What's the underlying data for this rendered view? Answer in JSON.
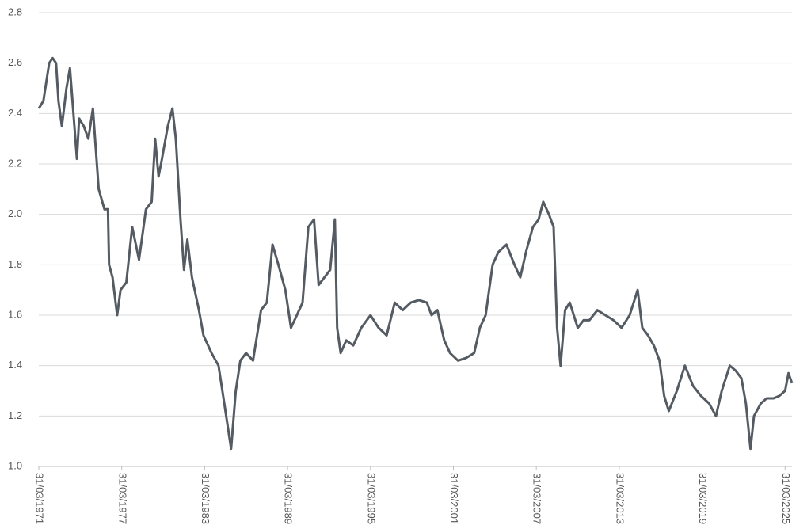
{
  "chart_data": {
    "type": "line",
    "x": [
      "31/03/1971",
      "31/07/1971",
      "31/12/1971",
      "31/03/1972",
      "30/06/1972",
      "31/08/1972",
      "30/11/1972",
      "31/03/1973",
      "30/06/1973",
      "30/09/1973",
      "31/12/1973",
      "28/02/1974",
      "30/06/1974",
      "31/10/1974",
      "28/02/1975",
      "31/07/1975",
      "31/12/1975",
      "31/03/1976",
      "30/04/1976",
      "31/07/1976",
      "30/11/1976",
      "28/02/1977",
      "31/07/1977",
      "31/12/1977",
      "30/06/1978",
      "31/12/1978",
      "31/05/1979",
      "31/08/1979",
      "30/11/1979",
      "28/02/1980",
      "31/07/1980",
      "30/11/1980",
      "28/02/1981",
      "30/06/1981",
      "30/09/1981",
      "31/12/1981",
      "30/04/1982",
      "31/10/1982",
      "28/02/1983",
      "30/09/1983",
      "31/03/1984",
      "31/08/1984",
      "28/02/1985",
      "30/06/1985",
      "31/10/1985",
      "31/03/1986",
      "30/09/1986",
      "30/04/1987",
      "30/09/1987",
      "28/02/1988",
      "31/07/1988",
      "31/01/1989",
      "30/06/1989",
      "30/11/1989",
      "30/04/1990",
      "30/09/1990",
      "28/02/1991",
      "30/06/1991",
      "30/11/1991",
      "30/04/1992",
      "31/08/1992",
      "31/10/1992",
      "31/01/1993",
      "30/06/1993",
      "31/12/1993",
      "31/07/1994",
      "31/03/1995",
      "31/10/1995",
      "31/05/1996",
      "31/12/1996",
      "31/07/1997",
      "28/02/1998",
      "30/09/1998",
      "30/04/1999",
      "31/08/1999",
      "31/01/2000",
      "31/07/2000",
      "31/12/2000",
      "31/07/2001",
      "28/02/2002",
      "30/09/2002",
      "28/02/2003",
      "31/07/2003",
      "31/01/2004",
      "30/06/2004",
      "31/01/2005",
      "31/08/2005",
      "31/01/2006",
      "30/06/2006",
      "31/12/2006",
      "31/05/2007",
      "30/09/2007",
      "28/02/2008",
      "30/06/2008",
      "30/09/2008",
      "31/12/2008",
      "30/04/2009",
      "31/08/2009",
      "31/03/2010",
      "31/08/2010",
      "31/01/2011",
      "31/08/2011",
      "31/03/2012",
      "31/10/2012",
      "31/05/2013",
      "31/12/2013",
      "31/07/2014",
      "30/11/2014",
      "30/04/2015",
      "30/09/2015",
      "28/02/2016",
      "30/06/2016",
      "31/10/2016",
      "31/05/2017",
      "31/12/2017",
      "31/07/2018",
      "28/02/2019",
      "30/09/2019",
      "31/03/2020",
      "31/08/2020",
      "31/03/2021",
      "31/08/2021",
      "31/01/2022",
      "31/05/2022",
      "30/09/2022",
      "31/12/2022",
      "30/06/2023",
      "30/11/2023",
      "31/05/2024",
      "31/10/2024",
      "31/03/2025",
      "30/06/2025",
      "30/09/2025"
    ],
    "series": [
      {
        "color": "#555b62",
        "values": [
          2.42,
          2.45,
          2.6,
          2.62,
          2.6,
          2.45,
          2.35,
          2.5,
          2.58,
          2.4,
          2.22,
          2.38,
          2.35,
          2.3,
          2.42,
          2.1,
          2.02,
          2.02,
          1.8,
          1.75,
          1.6,
          1.7,
          1.73,
          1.95,
          1.82,
          2.02,
          2.05,
          2.3,
          2.15,
          2.22,
          2.35,
          2.42,
          2.3,
          1.98,
          1.78,
          1.9,
          1.75,
          1.62,
          1.52,
          1.45,
          1.4,
          1.25,
          1.07,
          1.3,
          1.42,
          1.45,
          1.42,
          1.62,
          1.65,
          1.88,
          1.8,
          1.7,
          1.55,
          1.6,
          1.65,
          1.95,
          1.98,
          1.72,
          1.75,
          1.78,
          1.98,
          1.55,
          1.45,
          1.5,
          1.48,
          1.55,
          1.6,
          1.55,
          1.52,
          1.65,
          1.62,
          1.65,
          1.66,
          1.65,
          1.6,
          1.62,
          1.5,
          1.45,
          1.42,
          1.43,
          1.45,
          1.55,
          1.6,
          1.8,
          1.85,
          1.88,
          1.8,
          1.75,
          1.85,
          1.95,
          1.98,
          2.05,
          2.0,
          1.95,
          1.55,
          1.4,
          1.62,
          1.65,
          1.55,
          1.58,
          1.58,
          1.62,
          1.6,
          1.58,
          1.55,
          1.6,
          1.7,
          1.55,
          1.52,
          1.48,
          1.42,
          1.28,
          1.22,
          1.3,
          1.4,
          1.32,
          1.28,
          1.25,
          1.2,
          1.3,
          1.4,
          1.38,
          1.35,
          1.25,
          1.07,
          1.2,
          1.25,
          1.27,
          1.27,
          1.28,
          1.3,
          1.37,
          1.33
        ]
      }
    ],
    "xlim": [
      "31/03/1971",
      "30/09/2025"
    ],
    "xticks": [
      "31/03/1971",
      "31/03/1977",
      "31/03/1983",
      "31/03/1989",
      "31/03/1995",
      "31/03/2001",
      "31/03/2007",
      "31/03/2013",
      "31/03/2019",
      "31/03/2025"
    ],
    "ylim": [
      1.0,
      2.8
    ],
    "yticks": [
      {
        "value": 1.0,
        "label": "1.0"
      },
      1.2,
      1.4,
      1.6,
      1.8,
      {
        "value": 2.0,
        "label": "2.0"
      },
      2.2,
      2.4,
      2.6,
      2.8
    ],
    "grid": true
  }
}
